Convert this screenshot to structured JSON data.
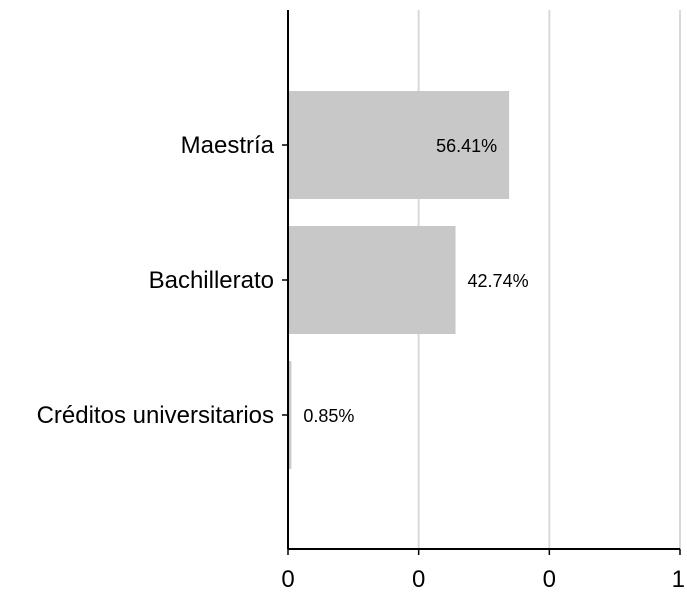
{
  "chart_data": {
    "type": "bar",
    "orientation": "horizontal",
    "categories": [
      "Maestría",
      "Bachillerato",
      "Créditos universitarios"
    ],
    "values": [
      56.41,
      42.74,
      0.85
    ],
    "value_labels": [
      "56.41%",
      "42.74%",
      "0.85%"
    ],
    "x_tick_labels": [
      "0",
      "0",
      "0",
      "1"
    ],
    "xlim": [
      0,
      1
    ],
    "bar_value_scale": 0.01,
    "title": "",
    "xlabel": "",
    "ylabel": "",
    "grid": "vertical",
    "legend": "none",
    "colors": {
      "bar": "#c8c8c8",
      "grid": "#d9d9d9",
      "axis": "#000000"
    }
  }
}
